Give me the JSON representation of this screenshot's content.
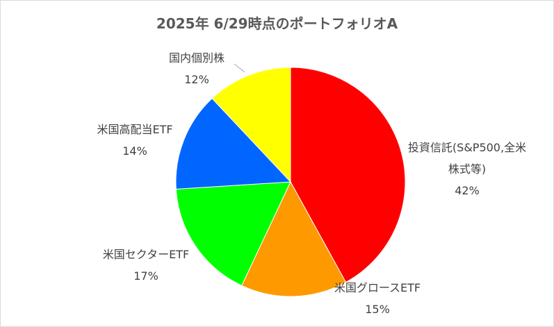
{
  "chart_data": {
    "type": "pie",
    "title": "2025年 6/29時点のポートフォリオA",
    "categories": [
      "投資信託(S&P500,全米株式等)",
      "米国グロースETF",
      "米国セクターETF",
      "米国高配当ETF",
      "国内個別株"
    ],
    "values": [
      42,
      15,
      17,
      14,
      12
    ],
    "value_labels": [
      "42%",
      "15%",
      "17%",
      "14%",
      "12%"
    ],
    "colors": [
      "#ff0000",
      "#ff9900",
      "#00ff00",
      "#0066ff",
      "#ffff00"
    ]
  }
}
